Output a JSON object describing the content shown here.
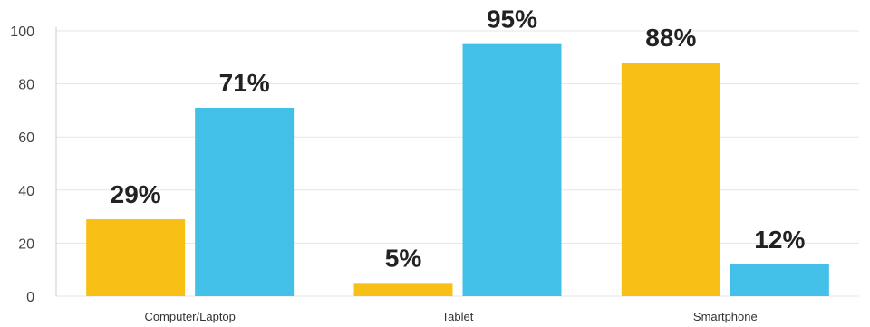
{
  "chart_data": {
    "type": "bar",
    "title": "",
    "xlabel": "",
    "ylabel": "",
    "categories": [
      "Computer/Laptop",
      "Tablet",
      "Smartphone"
    ],
    "series": [
      {
        "color": "#F8C015",
        "values": [
          29,
          5,
          88
        ],
        "labels": [
          "29%",
          "5%",
          "88%"
        ]
      },
      {
        "color": "#42C0E8",
        "values": [
          71,
          95,
          12
        ],
        "labels": [
          "71%",
          "95%",
          "12%"
        ]
      }
    ],
    "ylim": [
      0,
      100
    ],
    "yticks": [
      0,
      20,
      40,
      60,
      80,
      100
    ],
    "ytick_labels": [
      "0",
      "20",
      "40",
      "60",
      "80",
      "100"
    ],
    "grid": true,
    "legend": "none"
  }
}
